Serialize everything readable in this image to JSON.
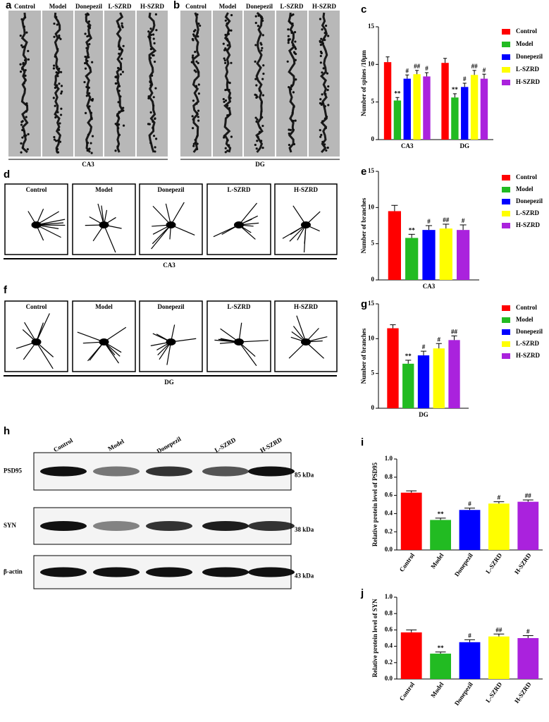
{
  "figure": {
    "letters": [
      "a",
      "b",
      "c",
      "d",
      "e",
      "f",
      "g",
      "h",
      "i",
      "j"
    ],
    "groups": [
      "Control",
      "Model",
      "Donepezil",
      "L-SZRD",
      "H-SZRD"
    ],
    "regions": [
      "CA3",
      "DG"
    ],
    "proteins": [
      {
        "name": "PSD95",
        "size": "85 kDa"
      },
      {
        "name": "SYN",
        "size": "38 kDa"
      },
      {
        "name": "β-actin",
        "size": "43 kDa"
      }
    ]
  },
  "chart_data": [
    {
      "type": "bar",
      "ylabel": "Number of spines /10μm",
      "categories": [
        "CA3",
        "DG"
      ],
      "ylim": [
        0,
        15
      ],
      "yticks": [
        0,
        5,
        10,
        15
      ],
      "legend": "right",
      "series": [
        {
          "name": "Control",
          "color": "#ff0000",
          "values": [
            10.3,
            10.2
          ],
          "errors": [
            0.7,
            0.6
          ]
        },
        {
          "name": "Model",
          "color": "#22bb22",
          "values": [
            5.2,
            5.6
          ],
          "errors": [
            0.4,
            0.5
          ],
          "annotations": [
            "**",
            "**"
          ]
        },
        {
          "name": "Donepezil",
          "color": "#0000ff",
          "values": [
            8.1,
            7.0
          ],
          "errors": [
            0.5,
            0.5
          ],
          "annotations": [
            "#",
            "#"
          ]
        },
        {
          "name": "L-SZRD",
          "color": "#ffff00",
          "values": [
            8.7,
            8.6
          ],
          "errors": [
            0.5,
            0.6
          ],
          "annotations": [
            "##",
            "##"
          ]
        },
        {
          "name": "H-SZRD",
          "color": "#aa22dd",
          "values": [
            8.4,
            8.1
          ],
          "errors": [
            0.5,
            0.6
          ],
          "annotations": [
            "#",
            "#"
          ]
        }
      ]
    },
    {
      "type": "bar",
      "ylabel": "Number of branches",
      "categories": [
        "CA3"
      ],
      "ylim": [
        0,
        15
      ],
      "yticks": [
        0,
        5,
        10,
        15
      ],
      "legend": "right",
      "series": [
        {
          "name": "Control",
          "color": "#ff0000",
          "values": [
            9.5
          ],
          "errors": [
            0.8
          ]
        },
        {
          "name": "Model",
          "color": "#22bb22",
          "values": [
            5.8
          ],
          "errors": [
            0.5
          ],
          "annotations": [
            "**"
          ]
        },
        {
          "name": "Donepezil",
          "color": "#0000ff",
          "values": [
            6.9
          ],
          "errors": [
            0.6
          ],
          "annotations": [
            "#"
          ]
        },
        {
          "name": "L-SZRD",
          "color": "#ffff00",
          "values": [
            7.1
          ],
          "errors": [
            0.6
          ],
          "annotations": [
            "##"
          ]
        },
        {
          "name": "H-SZRD",
          "color": "#aa22dd",
          "values": [
            6.9
          ],
          "errors": [
            0.7
          ],
          "annotations": [
            "#"
          ]
        }
      ]
    },
    {
      "type": "bar",
      "ylabel": "Number of branches",
      "categories": [
        "DG"
      ],
      "ylim": [
        0,
        15
      ],
      "yticks": [
        0,
        5,
        10,
        15
      ],
      "legend": "right",
      "series": [
        {
          "name": "Control",
          "color": "#ff0000",
          "values": [
            11.5
          ],
          "errors": [
            0.5
          ]
        },
        {
          "name": "Model",
          "color": "#22bb22",
          "values": [
            6.4
          ],
          "errors": [
            0.5
          ],
          "annotations": [
            "**"
          ]
        },
        {
          "name": "Donepezil",
          "color": "#0000ff",
          "values": [
            7.6
          ],
          "errors": [
            0.6
          ],
          "annotations": [
            "#"
          ]
        },
        {
          "name": "L-SZRD",
          "color": "#ffff00",
          "values": [
            8.6
          ],
          "errors": [
            0.7
          ],
          "annotations": [
            "#"
          ]
        },
        {
          "name": "H-SZRD",
          "color": "#aa22dd",
          "values": [
            9.8
          ],
          "errors": [
            0.6
          ],
          "annotations": [
            "##"
          ]
        }
      ]
    },
    {
      "type": "bar",
      "ylabel": "Relative protein level of PSD95",
      "categories": [
        "Control",
        "Model",
        "Donepezil",
        "L-SZRD",
        "H-SZRD"
      ],
      "values": [
        0.63,
        0.33,
        0.44,
        0.51,
        0.53
      ],
      "errors": [
        0.02,
        0.02,
        0.02,
        0.02,
        0.02
      ],
      "annotations": [
        null,
        "**",
        "#",
        "#",
        "##"
      ],
      "colors": [
        "#ff0000",
        "#22bb22",
        "#0000ff",
        "#ffff00",
        "#aa22dd"
      ],
      "ylim": [
        0,
        1
      ],
      "yticks": [
        {
          "value": 0,
          "label": "0.0"
        },
        0.2,
        0.4,
        0.6,
        0.8,
        {
          "value": 1,
          "label": "1.0"
        }
      ]
    },
    {
      "type": "bar",
      "ylabel": "Relative protein level of SYN",
      "categories": [
        "Control",
        "Model",
        "Donepezil",
        "L-SZRD",
        "H-SZRD"
      ],
      "values": [
        0.57,
        0.31,
        0.45,
        0.52,
        0.5
      ],
      "errors": [
        0.03,
        0.02,
        0.03,
        0.03,
        0.03
      ],
      "annotations": [
        null,
        "**",
        "#",
        "##",
        "#"
      ],
      "colors": [
        "#ff0000",
        "#22bb22",
        "#0000ff",
        "#ffff00",
        "#aa22dd"
      ],
      "ylim": [
        0,
        1
      ],
      "yticks": [
        {
          "value": 0,
          "label": "0.0"
        },
        0.2,
        0.4,
        0.6,
        0.8,
        {
          "value": 1,
          "label": "1.0"
        }
      ]
    }
  ]
}
